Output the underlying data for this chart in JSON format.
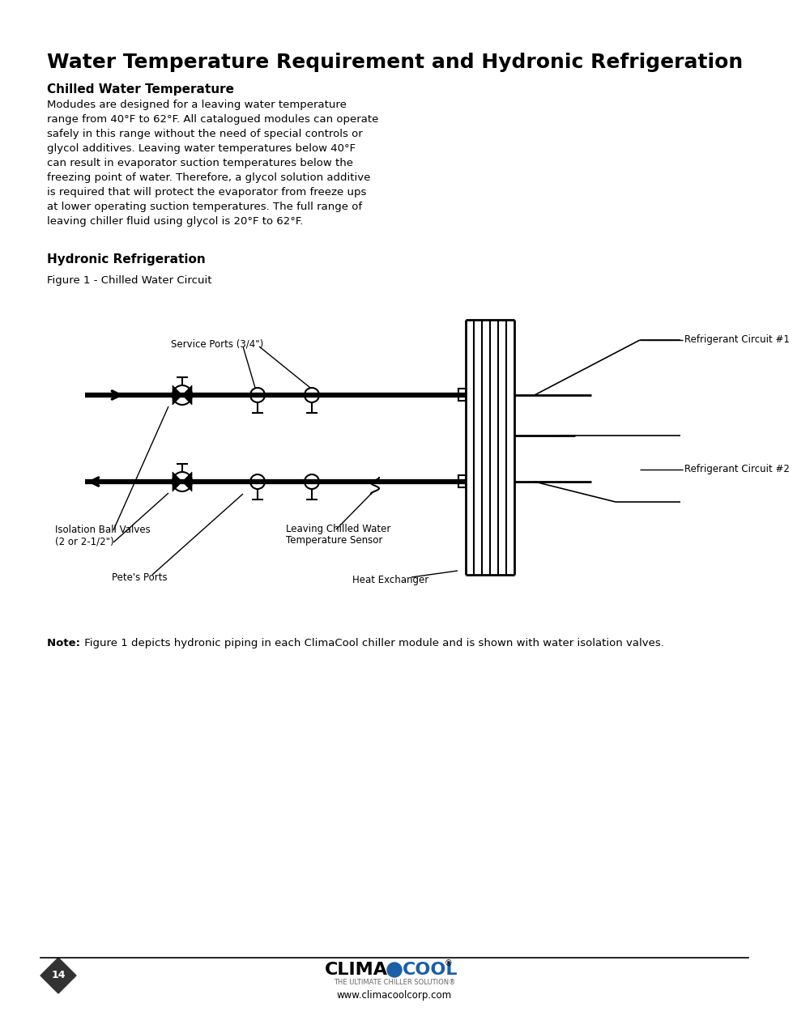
{
  "title": "Water Temperature Requirement and Hydronic Refrigeration",
  "section1_heading": "Chilled Water Temperature",
  "section2_heading": "Hydronic Refrigeration",
  "figure_caption": "Figure 1 - Chilled Water Circuit",
  "note_bold": "Note: ",
  "note_rest": " Figure 1 depicts hydronic piping in each ClimaCool chiller module and is shown with water isolation valves.",
  "page_number": "14",
  "website": "www.climacoolcorp.com",
  "logo_subtitle": "THE ULTIMATE CHILLER SOLUTION",
  "bg_color": "#ffffff",
  "text_color": "#000000",
  "blue_color": "#1a5fa8",
  "gray_color": "#333333",
  "label_service_ports": "Service Ports (3/4\")",
  "label_refrigerant1": "Refrigerant Circuit #1",
  "label_refrigerant2": "Refrigerant Circuit #2",
  "label_isolation_1": "Isolation Ball Valves",
  "label_isolation_2": "(2 or 2-1/2\")",
  "label_petes": "Pete's Ports",
  "label_leaving_1": "Leaving Chilled Water",
  "label_leaving_2": "Temperature Sensor",
  "label_heat_exchanger": "Heat Exchanger",
  "body1_lines": [
    "Modudes are designed for a leaving water temperature",
    "range from 40°F to 62°F. All catalogued modules can operate",
    "safely in this range without the need of special controls or",
    "glycol additives. Leaving water temperatures below 40°F",
    "can result in evaporator suction temperatures below the",
    "freezing point of water. Therefore, a glycol solution additive",
    "is required that will protect the evaporator from freeze ups",
    "at lower operating suction temperatures. The full range of",
    "leaving chiller fluid using glycol is 20°F to 62°F."
  ]
}
